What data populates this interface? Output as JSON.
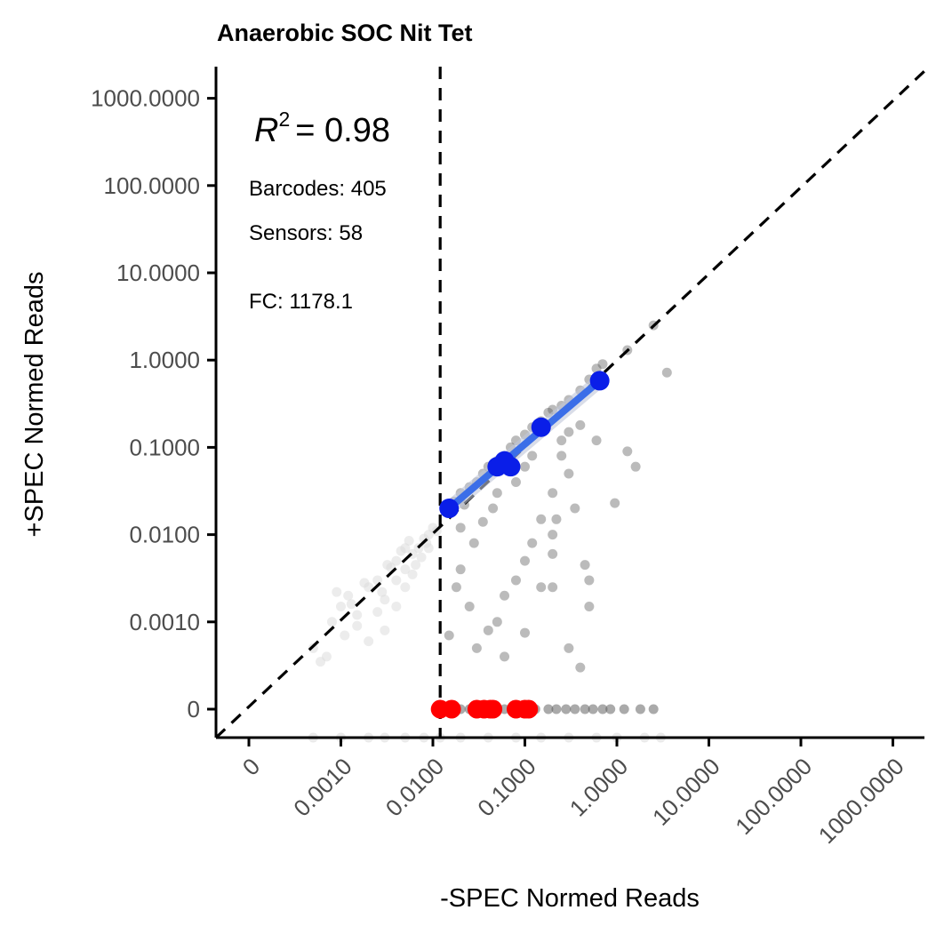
{
  "chart_data": {
    "type": "scatter",
    "title": "Anaerobic SOC Nit Tet",
    "xlabel": "-SPEC Normed Reads",
    "ylabel": "+SPEC Normed Reads",
    "x_scale": "log10 with zero pseudo-position",
    "y_scale": "log10 with zero pseudo-position",
    "x_ticks": [
      "0",
      "0.0010",
      "0.0100",
      "0.1000",
      "1.0000",
      "10.0000",
      "100.0000",
      "1000.0000"
    ],
    "y_ticks": [
      "0",
      "0.0010",
      "0.0100",
      "0.1000",
      "1.0000",
      "10.0000",
      "100.0000",
      "1000.0000"
    ],
    "threshold_x": 0.012,
    "identity_line": true,
    "annotations": {
      "r2_label": "R",
      "r2_exponent": "2",
      "r2_value": "= 0.98",
      "barcodes": "Barcodes: 405",
      "sensors": "Sensors: 58",
      "fc": "FC: 1178.1"
    },
    "fit_line": {
      "x": [
        0.015,
        0.65
      ],
      "y": [
        0.02,
        0.58
      ],
      "color": "#3b6ee8"
    },
    "series": [
      {
        "role": "barcodes_above_threshold",
        "color": "#555555",
        "points": [
          [
            0.015,
            0.021
          ],
          [
            0.017,
            0.024
          ],
          [
            0.02,
            0.03
          ],
          [
            0.022,
            0.022
          ],
          [
            0.025,
            0.035
          ],
          [
            0.03,
            0.04
          ],
          [
            0.035,
            0.05
          ],
          [
            0.04,
            0.06
          ],
          [
            0.05,
            0.07
          ],
          [
            0.06,
            0.08
          ],
          [
            0.07,
            0.1
          ],
          [
            0.08,
            0.12
          ],
          [
            0.1,
            0.14
          ],
          [
            0.12,
            0.17
          ],
          [
            0.15,
            0.2
          ],
          [
            0.18,
            0.25
          ],
          [
            0.2,
            0.27
          ],
          [
            0.25,
            0.3
          ],
          [
            0.3,
            0.35
          ],
          [
            0.4,
            0.45
          ],
          [
            0.5,
            0.6
          ],
          [
            0.6,
            0.8
          ],
          [
            0.7,
            0.9
          ],
          [
            1.3,
            1.3
          ],
          [
            2.5,
            2.5
          ],
          [
            3.5,
            0.72
          ],
          [
            1.3,
            0.09
          ],
          [
            1.6,
            0.06
          ],
          [
            0.95,
            0.023
          ],
          [
            0.25,
            0.08
          ],
          [
            0.3,
            0.05
          ],
          [
            0.2,
            0.03
          ],
          [
            0.15,
            0.015
          ],
          [
            0.12,
            0.008
          ],
          [
            0.1,
            0.005
          ],
          [
            0.08,
            0.003
          ],
          [
            0.06,
            0.002
          ],
          [
            0.05,
            0.001
          ],
          [
            0.04,
            0.0008
          ],
          [
            0.03,
            0.0005
          ],
          [
            0.02,
            0.004
          ],
          [
            0.025,
            0.0015
          ],
          [
            0.018,
            0.0025
          ],
          [
            0.06,
            0.0004
          ],
          [
            0.1,
            0.00075
          ],
          [
            0.2,
            0.0025
          ],
          [
            0.3,
            0.0005
          ],
          [
            0.4,
            0.0003
          ],
          [
            0.5,
            0.0015
          ],
          [
            0.22,
            0.015
          ],
          [
            0.45,
            0.0045
          ],
          [
            0.35,
            0.02
          ],
          [
            0.2,
            0.006
          ],
          [
            0.15,
            0.0025
          ],
          [
            0.5,
            0.003
          ],
          [
            0.015,
            0.0007
          ],
          [
            0.2,
            0.01
          ],
          [
            0.6,
            0.12
          ],
          [
            0.4,
            0.18
          ],
          [
            0.3,
            0.15
          ],
          [
            0.25,
            0.12
          ],
          [
            0.1,
            0.06
          ],
          [
            0.12,
            0.08
          ],
          [
            0.08,
            0.04
          ],
          [
            0.05,
            0.03
          ],
          [
            0.045,
            0.02
          ],
          [
            0.035,
            0.014
          ],
          [
            0.028,
            0.008
          ],
          [
            0.02,
            0.012
          ]
        ]
      },
      {
        "role": "barcodes_below_threshold",
        "color": "#dcdcdc",
        "points": [
          [
            0.0005,
            0.0005
          ],
          [
            0.0006,
            0.00035
          ],
          [
            0.0008,
            0.001
          ],
          [
            0.001,
            0.0015
          ],
          [
            0.0012,
            0.002
          ],
          [
            0.0015,
            0.0012
          ],
          [
            0.002,
            0.0025
          ],
          [
            0.0025,
            0.003
          ],
          [
            0.003,
            0.0018
          ],
          [
            0.004,
            0.005
          ],
          [
            0.005,
            0.004
          ],
          [
            0.006,
            0.006
          ],
          [
            0.007,
            0.007
          ],
          [
            0.008,
            0.009
          ],
          [
            0.009,
            0.01
          ],
          [
            0.01,
            0.012
          ],
          [
            0.011,
            0.011
          ],
          [
            0.003,
            0.0008
          ],
          [
            0.002,
            0.0006
          ],
          [
            0.004,
            0.0015
          ],
          [
            0.005,
            0.0025
          ],
          [
            0.006,
            0.0035
          ],
          [
            0.0035,
            0.0042
          ],
          [
            0.0015,
            0.0009
          ],
          [
            0.0007,
            0.0004
          ],
          [
            0.0009,
            0.0022
          ],
          [
            0.0045,
            0.0065
          ],
          [
            0.0055,
            0.0085
          ],
          [
            0.009,
            0.007
          ],
          [
            0.0065,
            0.0045
          ],
          [
            0.0025,
            0.0013
          ],
          [
            0.0018,
            0.0028
          ],
          [
            0.0011,
            0.0007
          ],
          [
            0.0075,
            0.0055
          ],
          [
            0.0085,
            0.008
          ],
          [
            0.004,
            0.003
          ],
          [
            0.005,
            0.007
          ],
          [
            0.0028,
            0.0022
          ],
          [
            0.0013,
            0.0016
          ],
          [
            0.0032,
            0.0045
          ]
        ]
      },
      {
        "role": "sensors_passing",
        "color": "#0a1ee8",
        "points": [
          [
            0.015,
            0.02
          ],
          [
            0.05,
            0.06
          ],
          [
            0.06,
            0.07
          ],
          [
            0.07,
            0.06
          ],
          [
            0.15,
            0.17
          ],
          [
            0.65,
            0.58
          ]
        ]
      },
      {
        "role": "sensors_zero_plus",
        "color": "#ff0000",
        "y_position": "0",
        "x_values": [
          0.012,
          0.016,
          0.03,
          0.036,
          0.042,
          0.045,
          0.08,
          0.1,
          0.11
        ]
      },
      {
        "role": "barcodes_zero_plus",
        "color": "#555555",
        "y_position": "0",
        "x_values": [
          0.02,
          0.025,
          0.04,
          0.06,
          0.09,
          0.13,
          0.18,
          0.22,
          0.28,
          0.35,
          0.45,
          0.55,
          0.7,
          0.85,
          1.2,
          1.8,
          2.5
        ]
      },
      {
        "role": "barcodes_zero_minus",
        "color": "#dcdcdc",
        "x_position": "below 0",
        "points_x": [
          0.0005,
          0.001,
          0.002,
          0.003,
          0.005,
          0.008,
          0.012,
          0.02,
          0.04,
          0.08,
          0.15,
          0.3,
          0.6,
          1.0,
          2.0,
          3.0
        ]
      }
    ]
  }
}
